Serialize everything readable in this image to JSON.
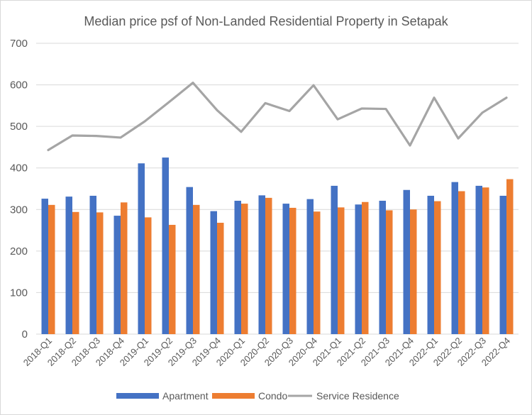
{
  "chart_data": {
    "type": "bar",
    "title": "Median price psf of Non-Landed Residential Property in Setapak",
    "xlabel": "",
    "ylabel": "",
    "ylim": [
      0,
      700
    ],
    "yticks": [
      "0",
      "100",
      "200",
      "300",
      "400",
      "500",
      "600",
      "700"
    ],
    "grid": true,
    "legend_position": "bottom",
    "categories": [
      "2018-Q1",
      "2018-Q2",
      "2018-Q3",
      "2018-Q4",
      "2019-Q1",
      "2019-Q2",
      "2019-Q3",
      "2019-Q4",
      "2020-Q1",
      "2020-Q2",
      "2020-Q3",
      "2020-Q4",
      "2021-Q1",
      "2021-Q2",
      "2021-Q3",
      "2021-Q4",
      "2022-Q1",
      "2022-Q2",
      "2022-Q3",
      "2022-Q4"
    ],
    "series": [
      {
        "name": "Apartment",
        "type": "bar",
        "color": "#4472c4",
        "values": [
          326,
          331,
          333,
          285,
          411,
          425,
          354,
          296,
          321,
          334,
          314,
          325,
          357,
          312,
          321,
          347,
          333,
          366,
          357,
          333
        ]
      },
      {
        "name": "Condo",
        "type": "bar",
        "color": "#ed7d31",
        "values": [
          311,
          294,
          293,
          317,
          281,
          263,
          311,
          268,
          314,
          328,
          304,
          295,
          305,
          318,
          298,
          300,
          320,
          344,
          353,
          373
        ]
      },
      {
        "name": "Service Residence",
        "type": "line",
        "color": "#a5a5a5",
        "values": [
          443,
          478,
          477,
          473,
          512,
          558,
          605,
          539,
          487,
          556,
          537,
          599,
          517,
          543,
          542,
          454,
          569,
          471,
          533,
          569
        ]
      }
    ]
  }
}
